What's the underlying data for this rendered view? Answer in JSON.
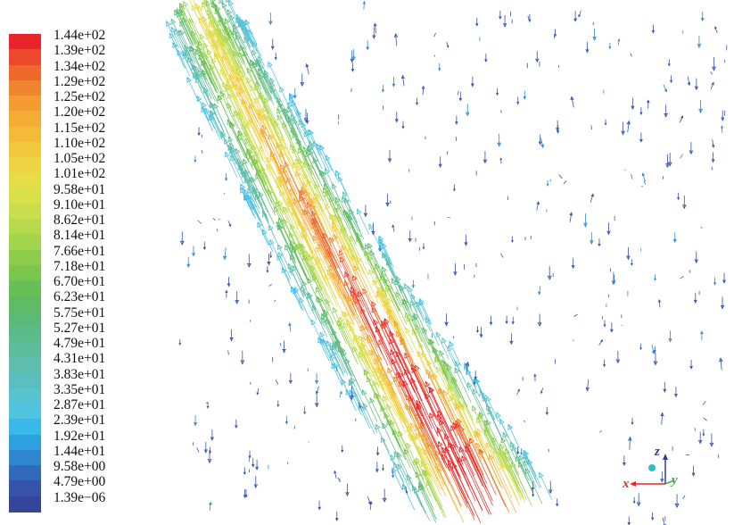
{
  "legend": {
    "labels": [
      "1.44e+02",
      "1.39e+02",
      "1.34e+02",
      "1.29e+02",
      "1.25e+02",
      "1.20e+02",
      "1.15e+02",
      "1.10e+02",
      "1.05e+02",
      "1.01e+02",
      "9.58e+01",
      "9.10e+01",
      "8.62e+01",
      "8.14e+01",
      "7.66e+01",
      "7.18e+01",
      "6.70e+01",
      "6.23e+01",
      "5.75e+01",
      "5.27e+01",
      "4.79e+01",
      "4.31e+01",
      "3.83e+01",
      "3.35e+01",
      "2.87e+01",
      "2.39e+01",
      "1.92e+01",
      "1.44e+01",
      "9.58e+00",
      "4.79e+00",
      "1.39e−06"
    ],
    "colors": [
      "#e8262a",
      "#eb4a2c",
      "#ee6a2c",
      "#f08530",
      "#f39c32",
      "#f5ac34",
      "#f4bb38",
      "#f2c83c",
      "#eed342",
      "#e6dc46",
      "#d8e04a",
      "#c8de4c",
      "#b6da4c",
      "#a2d44c",
      "#8ecd4c",
      "#7ac64e",
      "#68bf56",
      "#5fbb66",
      "#5cba78",
      "#5cbb8a",
      "#5dbc9c",
      "#5ebdad",
      "#5cbfbf",
      "#58c2d0",
      "#4fc3e0",
      "#38b9ea",
      "#2ea2df",
      "#2f86cf",
      "#3169bd",
      "#3453ab",
      "#36459c"
    ]
  },
  "axes": {
    "x_label": "x",
    "y_label": "y",
    "z_label": "z",
    "x_color": "#e8262a",
    "y_color": "#3cb043",
    "z_color": "#2a3f9c",
    "origin_color": "#2bbbc9"
  }
}
